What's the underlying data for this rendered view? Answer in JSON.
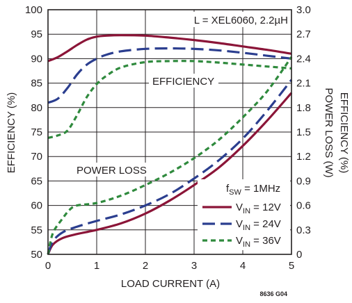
{
  "chart_data": {
    "type": "line",
    "xlabel": "LOAD CURRENT (A)",
    "ylabel": "EFFICIENCY (%)",
    "ylabel_right": "POWER LOSS (W)",
    "ylabel_right_overlay": "EFFICIENCY (%)",
    "xlim": [
      0,
      5
    ],
    "ylim": [
      50,
      100
    ],
    "ylim_right": [
      0,
      3.0
    ],
    "x_ticks": [
      "0",
      "1",
      "2",
      "3",
      "4",
      "5"
    ],
    "y_ticks": [
      "50",
      "55",
      "60",
      "65",
      "70",
      "75",
      "80",
      "85",
      "90",
      "95",
      "100"
    ],
    "y_right_ticks": [
      "0",
      "0.3",
      "0.6",
      "0.9",
      "1.2",
      "1.5",
      "1.8",
      "2.1",
      "2.4",
      "2.7",
      "3.0"
    ],
    "grid": true,
    "annotations": {
      "inductor": "L = XEL6060, 2.2µH",
      "efficiency_label": "EFFICIENCY",
      "power_loss_label": "POWER LOSS",
      "fsw_main": "f",
      "fsw_sub": "SW",
      "fsw_value": " = 1MHz",
      "figure_id": "8636 G04"
    },
    "legend": {
      "placement": "bottom-right",
      "entries": [
        {
          "main": "V",
          "sub": "IN",
          "rest": " = 12V",
          "color": "#8b1538",
          "dash": "solid"
        },
        {
          "main": "V",
          "sub": "IN",
          "rest": " = 24V",
          "color": "#2b3e8f",
          "dash": "long-dash"
        },
        {
          "main": "V",
          "sub": "IN",
          "rest": " = 36V",
          "color": "#2f8a3d",
          "dash": "short-dash"
        }
      ]
    },
    "series": [
      {
        "group": "efficiency",
        "axis": "left",
        "vin": "12V",
        "color": "#8b1538",
        "dash": "solid",
        "x": [
          0,
          0.2,
          0.4,
          0.6,
          0.8,
          1.0,
          1.2,
          1.5,
          2.0,
          2.5,
          3.0,
          3.5,
          4.0,
          4.5,
          5.0
        ],
        "y": [
          89.5,
          90.3,
          91.5,
          92.8,
          93.9,
          94.5,
          94.7,
          94.8,
          94.7,
          94.3,
          93.8,
          93.2,
          92.5,
          91.8,
          91.0
        ]
      },
      {
        "group": "efficiency",
        "axis": "left",
        "vin": "24V",
        "color": "#2b3e8f",
        "dash": "long-dash",
        "x": [
          0,
          0.2,
          0.4,
          0.6,
          0.8,
          1.0,
          1.2,
          1.5,
          2.0,
          2.5,
          3.0,
          3.5,
          4.0,
          4.5,
          5.0
        ],
        "y": [
          81.0,
          81.8,
          84.0,
          86.8,
          88.8,
          90.0,
          90.8,
          91.5,
          92.0,
          92.1,
          92.0,
          91.7,
          91.2,
          90.6,
          90.0
        ]
      },
      {
        "group": "efficiency",
        "axis": "left",
        "vin": "36V",
        "color": "#2f8a3d",
        "dash": "short-dash",
        "x": [
          0,
          0.2,
          0.4,
          0.6,
          0.8,
          1.0,
          1.2,
          1.5,
          2.0,
          2.5,
          3.0,
          3.5,
          4.0,
          4.5,
          5.0
        ],
        "y": [
          73.8,
          74.3,
          75.3,
          78.5,
          82.2,
          84.8,
          86.5,
          88.2,
          89.3,
          89.5,
          89.5,
          89.2,
          88.8,
          88.4,
          88.0
        ]
      },
      {
        "group": "power_loss",
        "axis": "right",
        "vin": "12V",
        "color": "#8b1538",
        "dash": "solid",
        "x": [
          0,
          0.1,
          0.3,
          0.6,
          1.0,
          1.5,
          2.0,
          2.5,
          3.0,
          3.5,
          4.0,
          4.5,
          5.0
        ],
        "y": [
          0.0,
          0.12,
          0.2,
          0.25,
          0.3,
          0.38,
          0.5,
          0.66,
          0.85,
          1.06,
          1.33,
          1.64,
          1.98
        ]
      },
      {
        "group": "power_loss",
        "axis": "right",
        "vin": "24V",
        "color": "#2b3e8f",
        "dash": "long-dash",
        "x": [
          0,
          0.1,
          0.3,
          0.6,
          1.0,
          1.5,
          2.0,
          2.5,
          3.0,
          3.5,
          4.0,
          4.5,
          5.0
        ],
        "y": [
          0.0,
          0.16,
          0.27,
          0.34,
          0.41,
          0.49,
          0.6,
          0.74,
          0.93,
          1.15,
          1.42,
          1.76,
          2.14
        ]
      },
      {
        "group": "power_loss",
        "axis": "right",
        "vin": "36V",
        "color": "#2f8a3d",
        "dash": "short-dash",
        "x": [
          0,
          0.1,
          0.3,
          0.45,
          0.6,
          1.0,
          1.5,
          2.0,
          2.5,
          3.0,
          3.5,
          4.0,
          4.5,
          5.0
        ],
        "y": [
          0.0,
          0.26,
          0.44,
          0.55,
          0.6,
          0.63,
          0.72,
          0.85,
          1.0,
          1.18,
          1.4,
          1.68,
          2.0,
          2.42
        ]
      }
    ]
  }
}
